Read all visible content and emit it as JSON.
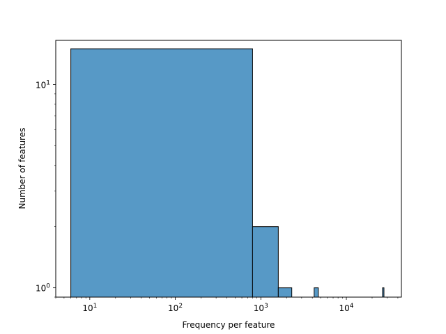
{
  "chart_data": {
    "type": "bar",
    "title": "",
    "xlabel": "Frequency per feature",
    "ylabel": "Number of features",
    "x_scale": "log",
    "y_scale": "log",
    "xlim": [
      4.0,
      44000
    ],
    "ylim": [
      0.9,
      16.5
    ],
    "x_ticks": [
      {
        "value": 10,
        "base": "10",
        "exp": "1"
      },
      {
        "value": 100,
        "base": "10",
        "exp": "2"
      },
      {
        "value": 1000,
        "base": "10",
        "exp": "3"
      },
      {
        "value": 10000,
        "base": "10",
        "exp": "4"
      }
    ],
    "y_ticks": [
      {
        "value": 1,
        "base": "10",
        "exp": "0"
      },
      {
        "value": 10,
        "base": "10",
        "exp": "1"
      }
    ],
    "bins": [
      {
        "x0": 6,
        "x1": 800,
        "count": 15
      },
      {
        "x0": 800,
        "x1": 1600,
        "count": 2
      },
      {
        "x0": 1600,
        "x1": 2300,
        "count": 1
      },
      {
        "x0": 4200,
        "x1": 4700,
        "count": 1
      },
      {
        "x0": 26500,
        "x1": 27500,
        "count": 1
      }
    ],
    "bar_color": "#5799c6",
    "edge_color": "#000000",
    "grid": false
  }
}
